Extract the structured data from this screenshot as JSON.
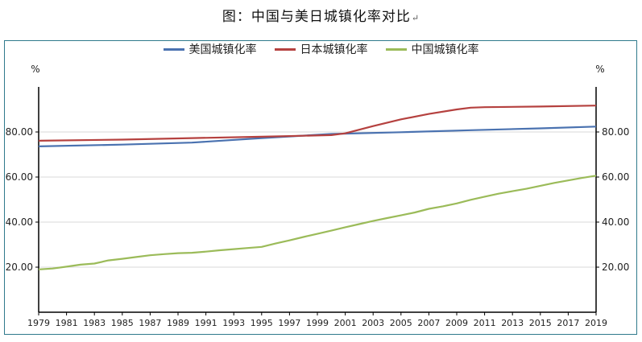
{
  "title": "图：中国与美日城镇化率对比",
  "title_mark": "↵",
  "chart_data": {
    "type": "line",
    "title": "图：中国与美日城镇化率对比",
    "left_unit": "%",
    "right_unit": "%",
    "ylim": [
      0,
      100
    ],
    "y_ticks": [
      20,
      40,
      60,
      80
    ],
    "y_tick_labels": [
      "20.00",
      "40.00",
      "60.00",
      "80.00"
    ],
    "xlim": [
      1979,
      2019
    ],
    "x_ticks": [
      1979,
      1981,
      1983,
      1985,
      1987,
      1989,
      1991,
      1993,
      1995,
      1997,
      1999,
      2001,
      2003,
      2005,
      2007,
      2009,
      2011,
      2013,
      2015,
      2017,
      2019
    ],
    "legend_position": "top-center",
    "grid": "horizontal",
    "series": [
      {
        "name": "美国城镇化率",
        "color": "#4a72b0",
        "points": [
          [
            1979,
            73.6
          ],
          [
            1985,
            74.4
          ],
          [
            1990,
            75.3
          ],
          [
            1995,
            77.3
          ],
          [
            2000,
            79.1
          ],
          [
            2005,
            79.9
          ],
          [
            2010,
            80.8
          ],
          [
            2015,
            81.6
          ],
          [
            2019,
            82.4
          ]
        ]
      },
      {
        "name": "日本城镇化率",
        "color": "#b5413f",
        "points": [
          [
            1979,
            76.1
          ],
          [
            1985,
            76.6
          ],
          [
            1990,
            77.3
          ],
          [
            1995,
            77.9
          ],
          [
            2000,
            78.6
          ],
          [
            2001,
            79.4
          ],
          [
            2003,
            82.6
          ],
          [
            2005,
            85.6
          ],
          [
            2007,
            88.0
          ],
          [
            2009,
            90.0
          ],
          [
            2010,
            90.8
          ],
          [
            2011,
            91.0
          ],
          [
            2015,
            91.3
          ],
          [
            2019,
            91.7
          ]
        ]
      },
      {
        "name": "中国城镇化率",
        "color": "#9bbb59",
        "points": [
          [
            1979,
            19.0
          ],
          [
            1980,
            19.4
          ],
          [
            1981,
            20.2
          ],
          [
            1982,
            21.1
          ],
          [
            1983,
            21.6
          ],
          [
            1984,
            23.0
          ],
          [
            1985,
            23.7
          ],
          [
            1986,
            24.5
          ],
          [
            1987,
            25.3
          ],
          [
            1988,
            25.8
          ],
          [
            1989,
            26.2
          ],
          [
            1990,
            26.4
          ],
          [
            1991,
            26.9
          ],
          [
            1992,
            27.5
          ],
          [
            1993,
            28.0
          ],
          [
            1994,
            28.5
          ],
          [
            1995,
            29.0
          ],
          [
            1996,
            30.5
          ],
          [
            1997,
            31.9
          ],
          [
            1998,
            33.4
          ],
          [
            1999,
            34.8
          ],
          [
            2000,
            36.2
          ],
          [
            2001,
            37.7
          ],
          [
            2002,
            39.1
          ],
          [
            2003,
            40.5
          ],
          [
            2004,
            41.8
          ],
          [
            2005,
            43.0
          ],
          [
            2006,
            44.3
          ],
          [
            2007,
            45.9
          ],
          [
            2008,
            47.0
          ],
          [
            2009,
            48.3
          ],
          [
            2010,
            49.9
          ],
          [
            2011,
            51.3
          ],
          [
            2012,
            52.6
          ],
          [
            2013,
            53.7
          ],
          [
            2014,
            54.8
          ],
          [
            2015,
            56.1
          ],
          [
            2016,
            57.4
          ],
          [
            2017,
            58.5
          ],
          [
            2018,
            59.6
          ],
          [
            2019,
            60.6
          ]
        ]
      }
    ]
  }
}
